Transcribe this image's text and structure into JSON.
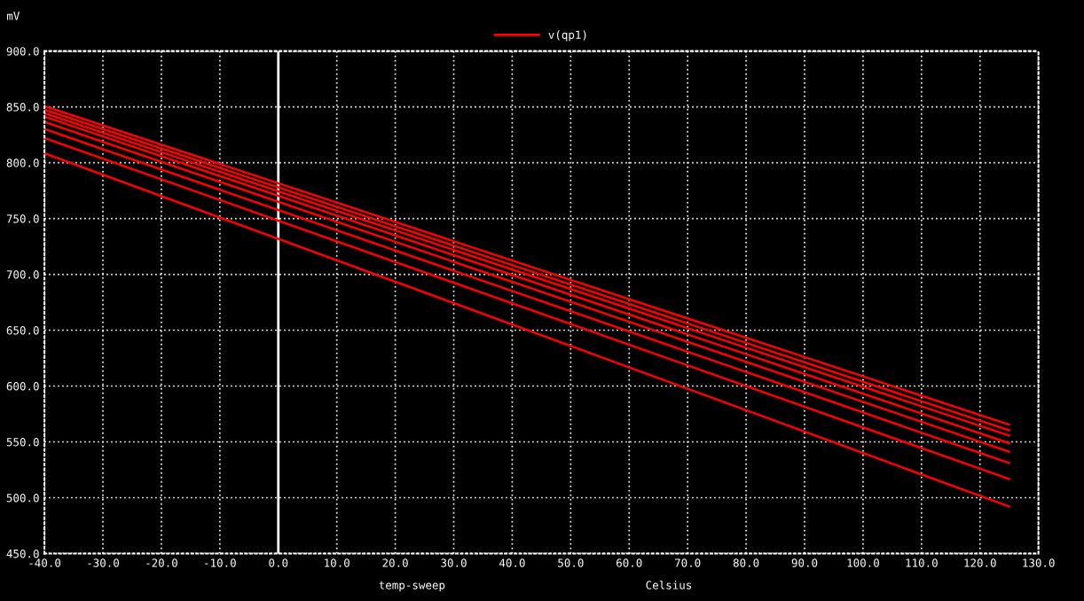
{
  "chart_data": {
    "type": "line",
    "ylabel": "mV",
    "xlabel": "Celsius",
    "annotations": [
      "temp-sweep"
    ],
    "x": [
      -40,
      125
    ],
    "series": [
      {
        "name": "v(qp1)",
        "color": "#ff0000",
        "values": [
          850.8,
          565.4
        ]
      },
      {
        "color": "#ff0000",
        "values": [
          847.6,
          560.3
        ]
      },
      {
        "color": "#ff0000",
        "values": [
          844.4,
          555.6
        ]
      },
      {
        "color": "#ff0000",
        "values": [
          841.3,
          548.8
        ]
      },
      {
        "color": "#ff0000",
        "values": [
          836.7,
          541.1
        ]
      },
      {
        "color": "#ff0000",
        "values": [
          830.2,
          531.0
        ]
      },
      {
        "color": "#ff0000",
        "values": [
          822.2,
          516.7
        ]
      },
      {
        "color": "#ff0000",
        "values": [
          808.5,
          492.1
        ]
      }
    ],
    "xlim": [
      -40,
      130
    ],
    "xticks": [
      {
        "value": -40,
        "label": "-40.0"
      },
      {
        "value": -30,
        "label": "-30.0"
      },
      {
        "value": -20,
        "label": "-20.0"
      },
      {
        "value": -10,
        "label": "-10.0"
      },
      {
        "value": 0,
        "label": "0.0"
      },
      {
        "value": 10,
        "label": "10.0"
      },
      {
        "value": 20,
        "label": "20.0"
      },
      {
        "value": 30,
        "label": "30.0"
      },
      {
        "value": 40,
        "label": "40.0"
      },
      {
        "value": 50,
        "label": "50.0"
      },
      {
        "value": 60,
        "label": "60.0"
      },
      {
        "value": 70,
        "label": "70.0"
      },
      {
        "value": 80,
        "label": "80.0"
      },
      {
        "value": 90,
        "label": "90.0"
      },
      {
        "value": 100,
        "label": "100.0"
      },
      {
        "value": 110,
        "label": "110.0"
      },
      {
        "value": 120,
        "label": "120.0"
      },
      {
        "value": 130,
        "label": "130.0"
      }
    ],
    "ylim": [
      450,
      900
    ],
    "yticks": [
      {
        "value": 450,
        "label": "450.0"
      },
      {
        "value": 500,
        "label": "500.0"
      },
      {
        "value": 550,
        "label": "550.0"
      },
      {
        "value": 600,
        "label": "600.0"
      },
      {
        "value": 650,
        "label": "650.0"
      },
      {
        "value": 700,
        "label": "700.0"
      },
      {
        "value": 750,
        "label": "750.0"
      },
      {
        "value": 800,
        "label": "800.0"
      },
      {
        "value": 850,
        "label": "850.0"
      },
      {
        "value": 900,
        "label": "900.0"
      }
    ],
    "ref_lines": [
      {
        "axis": "x",
        "value": 0,
        "color": "#ffffff"
      }
    ],
    "grid": true,
    "legend": "top",
    "marker": "none",
    "line_style": "solid"
  }
}
